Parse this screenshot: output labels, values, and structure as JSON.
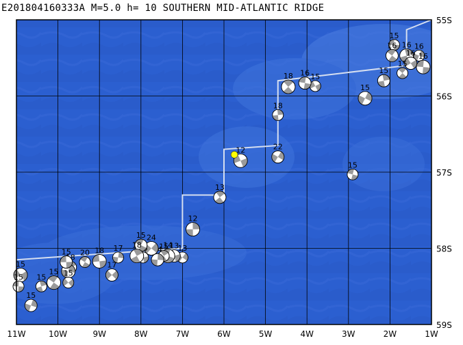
{
  "title": "E201804160333A M=5.0 h= 10 SOUTHERN MID-ATLANTIC RIDGE",
  "map": {
    "lon_range": [
      -11,
      -1
    ],
    "lat_range": [
      -59,
      -55
    ],
    "x_tick_labels": [
      "11W",
      "10W",
      "9W",
      "8W",
      "7W",
      "6W",
      "5W",
      "4W",
      "3W",
      "2W",
      "1W"
    ],
    "y_tick_labels": [
      "55S",
      "56S",
      "57S",
      "58S",
      "59S"
    ],
    "colors": {
      "ocean": "#2b5fd0",
      "grid": "#000000",
      "ridge": "#d6dff0",
      "mechanism": "#9a9a9a",
      "epicenter": "#ffff00"
    },
    "ridge": [
      [
        -11.0,
        -58.15
      ],
      [
        -7.0,
        -58.0
      ],
      [
        -7.0,
        -57.3
      ],
      [
        -6.0,
        -57.3
      ],
      [
        -6.0,
        -56.7
      ],
      [
        -4.7,
        -56.65
      ],
      [
        -4.7,
        -55.8
      ],
      [
        -1.6,
        -55.6
      ],
      [
        -1.6,
        -55.13
      ],
      [
        -1.0,
        -55.0
      ]
    ],
    "epicenter": {
      "lon": -5.75,
      "lat": -56.77
    },
    "events": [
      {
        "lon": -1.9,
        "lat": -55.33,
        "depth": "15"
      },
      {
        "lon": -1.95,
        "lat": -55.47,
        "depth": "16"
      },
      {
        "lon": -1.6,
        "lat": -55.47,
        "depth": "16"
      },
      {
        "lon": -1.3,
        "lat": -55.47,
        "depth": "16"
      },
      {
        "lon": -1.5,
        "lat": -55.57,
        "depth": "16"
      },
      {
        "lon": -1.2,
        "lat": -55.62,
        "depth": "16"
      },
      {
        "lon": -1.7,
        "lat": -55.7,
        "depth": "15"
      },
      {
        "lon": -2.15,
        "lat": -55.8,
        "depth": "15"
      },
      {
        "lon": -2.6,
        "lat": -56.03,
        "depth": "15"
      },
      {
        "lon": -3.8,
        "lat": -55.87,
        "depth": "15"
      },
      {
        "lon": -4.05,
        "lat": -55.83,
        "depth": "16"
      },
      {
        "lon": -4.45,
        "lat": -55.88,
        "depth": "18"
      },
      {
        "lon": -4.7,
        "lat": -56.25,
        "depth": "18"
      },
      {
        "lon": -4.7,
        "lat": -56.8,
        "depth": "22"
      },
      {
        "lon": -5.6,
        "lat": -56.85,
        "depth": "12"
      },
      {
        "lon": -2.9,
        "lat": -57.03,
        "depth": "15"
      },
      {
        "lon": -6.1,
        "lat": -57.33,
        "depth": "13"
      },
      {
        "lon": -6.75,
        "lat": -57.75,
        "depth": "12"
      },
      {
        "lon": -7.0,
        "lat": -58.12,
        "depth": "13"
      },
      {
        "lon": -7.2,
        "lat": -58.1,
        "depth": "13"
      },
      {
        "lon": -7.35,
        "lat": -58.1,
        "depth": "14"
      },
      {
        "lon": -7.45,
        "lat": -58.1,
        "depth": "15"
      },
      {
        "lon": -7.6,
        "lat": -58.15,
        "depth": "14"
      },
      {
        "lon": -7.75,
        "lat": -58.0,
        "depth": "24"
      },
      {
        "lon": -7.95,
        "lat": -58.12,
        "depth": "15"
      },
      {
        "lon": -8.0,
        "lat": -57.96,
        "depth": "15"
      },
      {
        "lon": -8.1,
        "lat": -58.1,
        "depth": "18"
      },
      {
        "lon": -8.55,
        "lat": -58.12,
        "depth": "17"
      },
      {
        "lon": -8.7,
        "lat": -58.35,
        "depth": "17"
      },
      {
        "lon": -9.0,
        "lat": -58.17,
        "depth": "18"
      },
      {
        "lon": -9.35,
        "lat": -58.18,
        "depth": "20"
      },
      {
        "lon": -9.7,
        "lat": -58.25,
        "depth": "18"
      },
      {
        "lon": -9.75,
        "lat": -58.3,
        "depth": "15"
      },
      {
        "lon": -9.75,
        "lat": -58.45,
        "depth": "15"
      },
      {
        "lon": -9.8,
        "lat": -58.18,
        "depth": "15"
      },
      {
        "lon": -10.1,
        "lat": -58.45,
        "depth": "15"
      },
      {
        "lon": -10.4,
        "lat": -58.5,
        "depth": "15"
      },
      {
        "lon": -10.65,
        "lat": -58.75,
        "depth": "15"
      },
      {
        "lon": -10.9,
        "lat": -58.35,
        "depth": "15"
      },
      {
        "lon": -10.95,
        "lat": -58.5,
        "depth": "15"
      }
    ]
  }
}
